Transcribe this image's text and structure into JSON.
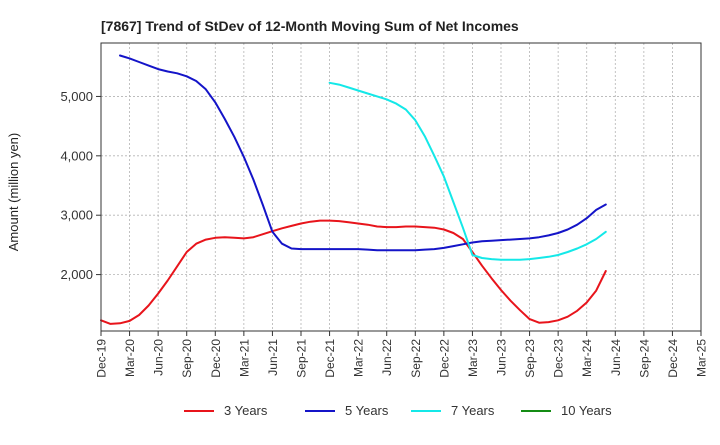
{
  "chart_data": {
    "type": "line",
    "title": "[7867]  Trend of StDev of 12-Month Moving Sum of Net Incomes",
    "xlabel": "",
    "ylabel": "Amount (million yen)",
    "x_ticks": [
      "Dec-19",
      "Mar-20",
      "Jun-20",
      "Sep-20",
      "Dec-20",
      "Mar-21",
      "Jun-21",
      "Sep-21",
      "Dec-21",
      "Mar-22",
      "Jun-22",
      "Sep-22",
      "Dec-22",
      "Mar-23",
      "Jun-23",
      "Sep-23",
      "Dec-23",
      "Mar-24",
      "Jun-24",
      "Sep-24",
      "Dec-24",
      "Mar-25"
    ],
    "y_ticks": [
      2000,
      3000,
      4000,
      5000
    ],
    "y_tick_labels": [
      "2,000",
      "3,000",
      "4,000",
      "5,000"
    ],
    "ylim": [
      1050,
      5900
    ],
    "grid": true,
    "legend_position": "bottom",
    "series": [
      {
        "name": "3 Years",
        "color": "#e8141b",
        "values": [
          1230,
          1170,
          1180,
          1220,
          1320,
          1480,
          1680,
          1900,
          2140,
          2380,
          2520,
          2590,
          2620,
          2630,
          2620,
          2610,
          2630,
          2680,
          2730,
          2780,
          2820,
          2860,
          2890,
          2910,
          2910,
          2900,
          2880,
          2860,
          2840,
          2810,
          2800,
          2800,
          2810,
          2810,
          2800,
          2790,
          2760,
          2700,
          2600,
          2380,
          2150,
          1940,
          1740,
          1560,
          1400,
          1250,
          1190,
          1200,
          1230,
          1290,
          1390,
          1530,
          1730,
          2060
        ]
      },
      {
        "name": "5 Years",
        "color": "#1414c8",
        "values": [
          null,
          null,
          5690,
          5640,
          5580,
          5520,
          5460,
          5420,
          5390,
          5340,
          5260,
          5120,
          4900,
          4620,
          4320,
          3980,
          3600,
          3170,
          2720,
          2520,
          2440,
          2430,
          2430,
          2430,
          2430,
          2430,
          2430,
          2430,
          2420,
          2410,
          2410,
          2410,
          2410,
          2410,
          2420,
          2430,
          2450,
          2480,
          2510,
          2540,
          2560,
          2570,
          2580,
          2590,
          2600,
          2610,
          2630,
          2660,
          2700,
          2760,
          2840,
          2950,
          3090,
          3180
        ]
      },
      {
        "name": "7 Years",
        "color": "#14e8e8",
        "values": [
          null,
          null,
          null,
          null,
          null,
          null,
          null,
          null,
          null,
          null,
          null,
          null,
          null,
          null,
          null,
          null,
          null,
          null,
          null,
          null,
          null,
          null,
          null,
          null,
          5230,
          5200,
          5150,
          5100,
          5050,
          5000,
          4950,
          4880,
          4780,
          4600,
          4330,
          4000,
          3650,
          3220,
          2790,
          2330,
          2280,
          2260,
          2250,
          2250,
          2250,
          2260,
          2280,
          2300,
          2330,
          2380,
          2440,
          2510,
          2600,
          2720
        ]
      },
      {
        "name": "10 Years",
        "color": "#148c14",
        "values": []
      }
    ]
  }
}
